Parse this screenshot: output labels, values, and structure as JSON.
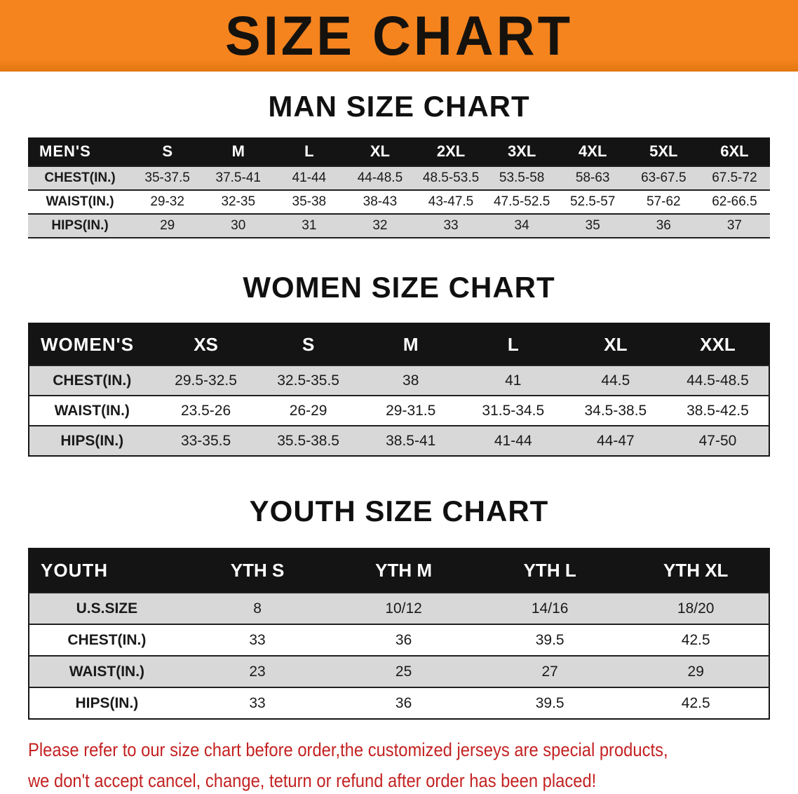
{
  "banner": {
    "title": "SIZE CHART"
  },
  "colors": {
    "banner_bg": "#F5841F",
    "table_header_bg": "#141414",
    "table_header_text": "#FFFFFF",
    "row_stripe": "#D8D8D8",
    "notice_text": "#C42222",
    "heading_text": "#101010"
  },
  "chart_data": [
    {
      "type": "table",
      "key": "men",
      "title": "MAN SIZE CHART",
      "columns": [
        "MEN'S",
        "S",
        "M",
        "L",
        "XL",
        "2XL",
        "3XL",
        "4XL",
        "5XL",
        "6XL"
      ],
      "rows": [
        [
          "CHEST(IN.)",
          "35-37.5",
          "37.5-41",
          "41-44",
          "44-48.5",
          "48.5-53.5",
          "53.5-58",
          "58-63",
          "63-67.5",
          "67.5-72"
        ],
        [
          "WAIST(IN.)",
          "29-32",
          "32-35",
          "35-38",
          "38-43",
          "43-47.5",
          "47.5-52.5",
          "52.5-57",
          "57-62",
          "62-66.5"
        ],
        [
          "HIPS(IN.)",
          "29",
          "30",
          "31",
          "32",
          "33",
          "34",
          "35",
          "36",
          "37"
        ]
      ]
    },
    {
      "type": "table",
      "key": "women",
      "title": "WOMEN SIZE CHART",
      "columns": [
        "WOMEN'S",
        "XS",
        "S",
        "M",
        "L",
        "XL",
        "XXL"
      ],
      "rows": [
        [
          "CHEST(IN.)",
          "29.5-32.5",
          "32.5-35.5",
          "38",
          "41",
          "44.5",
          "44.5-48.5"
        ],
        [
          "WAIST(IN.)",
          "23.5-26",
          "26-29",
          "29-31.5",
          "31.5-34.5",
          "34.5-38.5",
          "38.5-42.5"
        ],
        [
          "HIPS(IN.)",
          "33-35.5",
          "35.5-38.5",
          "38.5-41",
          "41-44",
          "44-47",
          "47-50"
        ]
      ]
    },
    {
      "type": "table",
      "key": "youth",
      "title": "YOUTH SIZE CHART",
      "columns": [
        "YOUTH",
        "YTH S",
        "YTH M",
        "YTH L",
        "YTH XL"
      ],
      "rows": [
        [
          "U.S.SIZE",
          "8",
          "10/12",
          "14/16",
          "18/20"
        ],
        [
          "CHEST(IN.)",
          "33",
          "36",
          "39.5",
          "42.5"
        ],
        [
          "WAIST(IN.)",
          "23",
          "25",
          "27",
          "29"
        ],
        [
          "HIPS(IN.)",
          "33",
          "36",
          "39.5",
          "42.5"
        ]
      ]
    }
  ],
  "footer": {
    "line1": "Please refer to our size chart before order,the customized jerseys are special products,",
    "line2": "we don't accept cancel, change, teturn or refund after order has been placed!"
  }
}
